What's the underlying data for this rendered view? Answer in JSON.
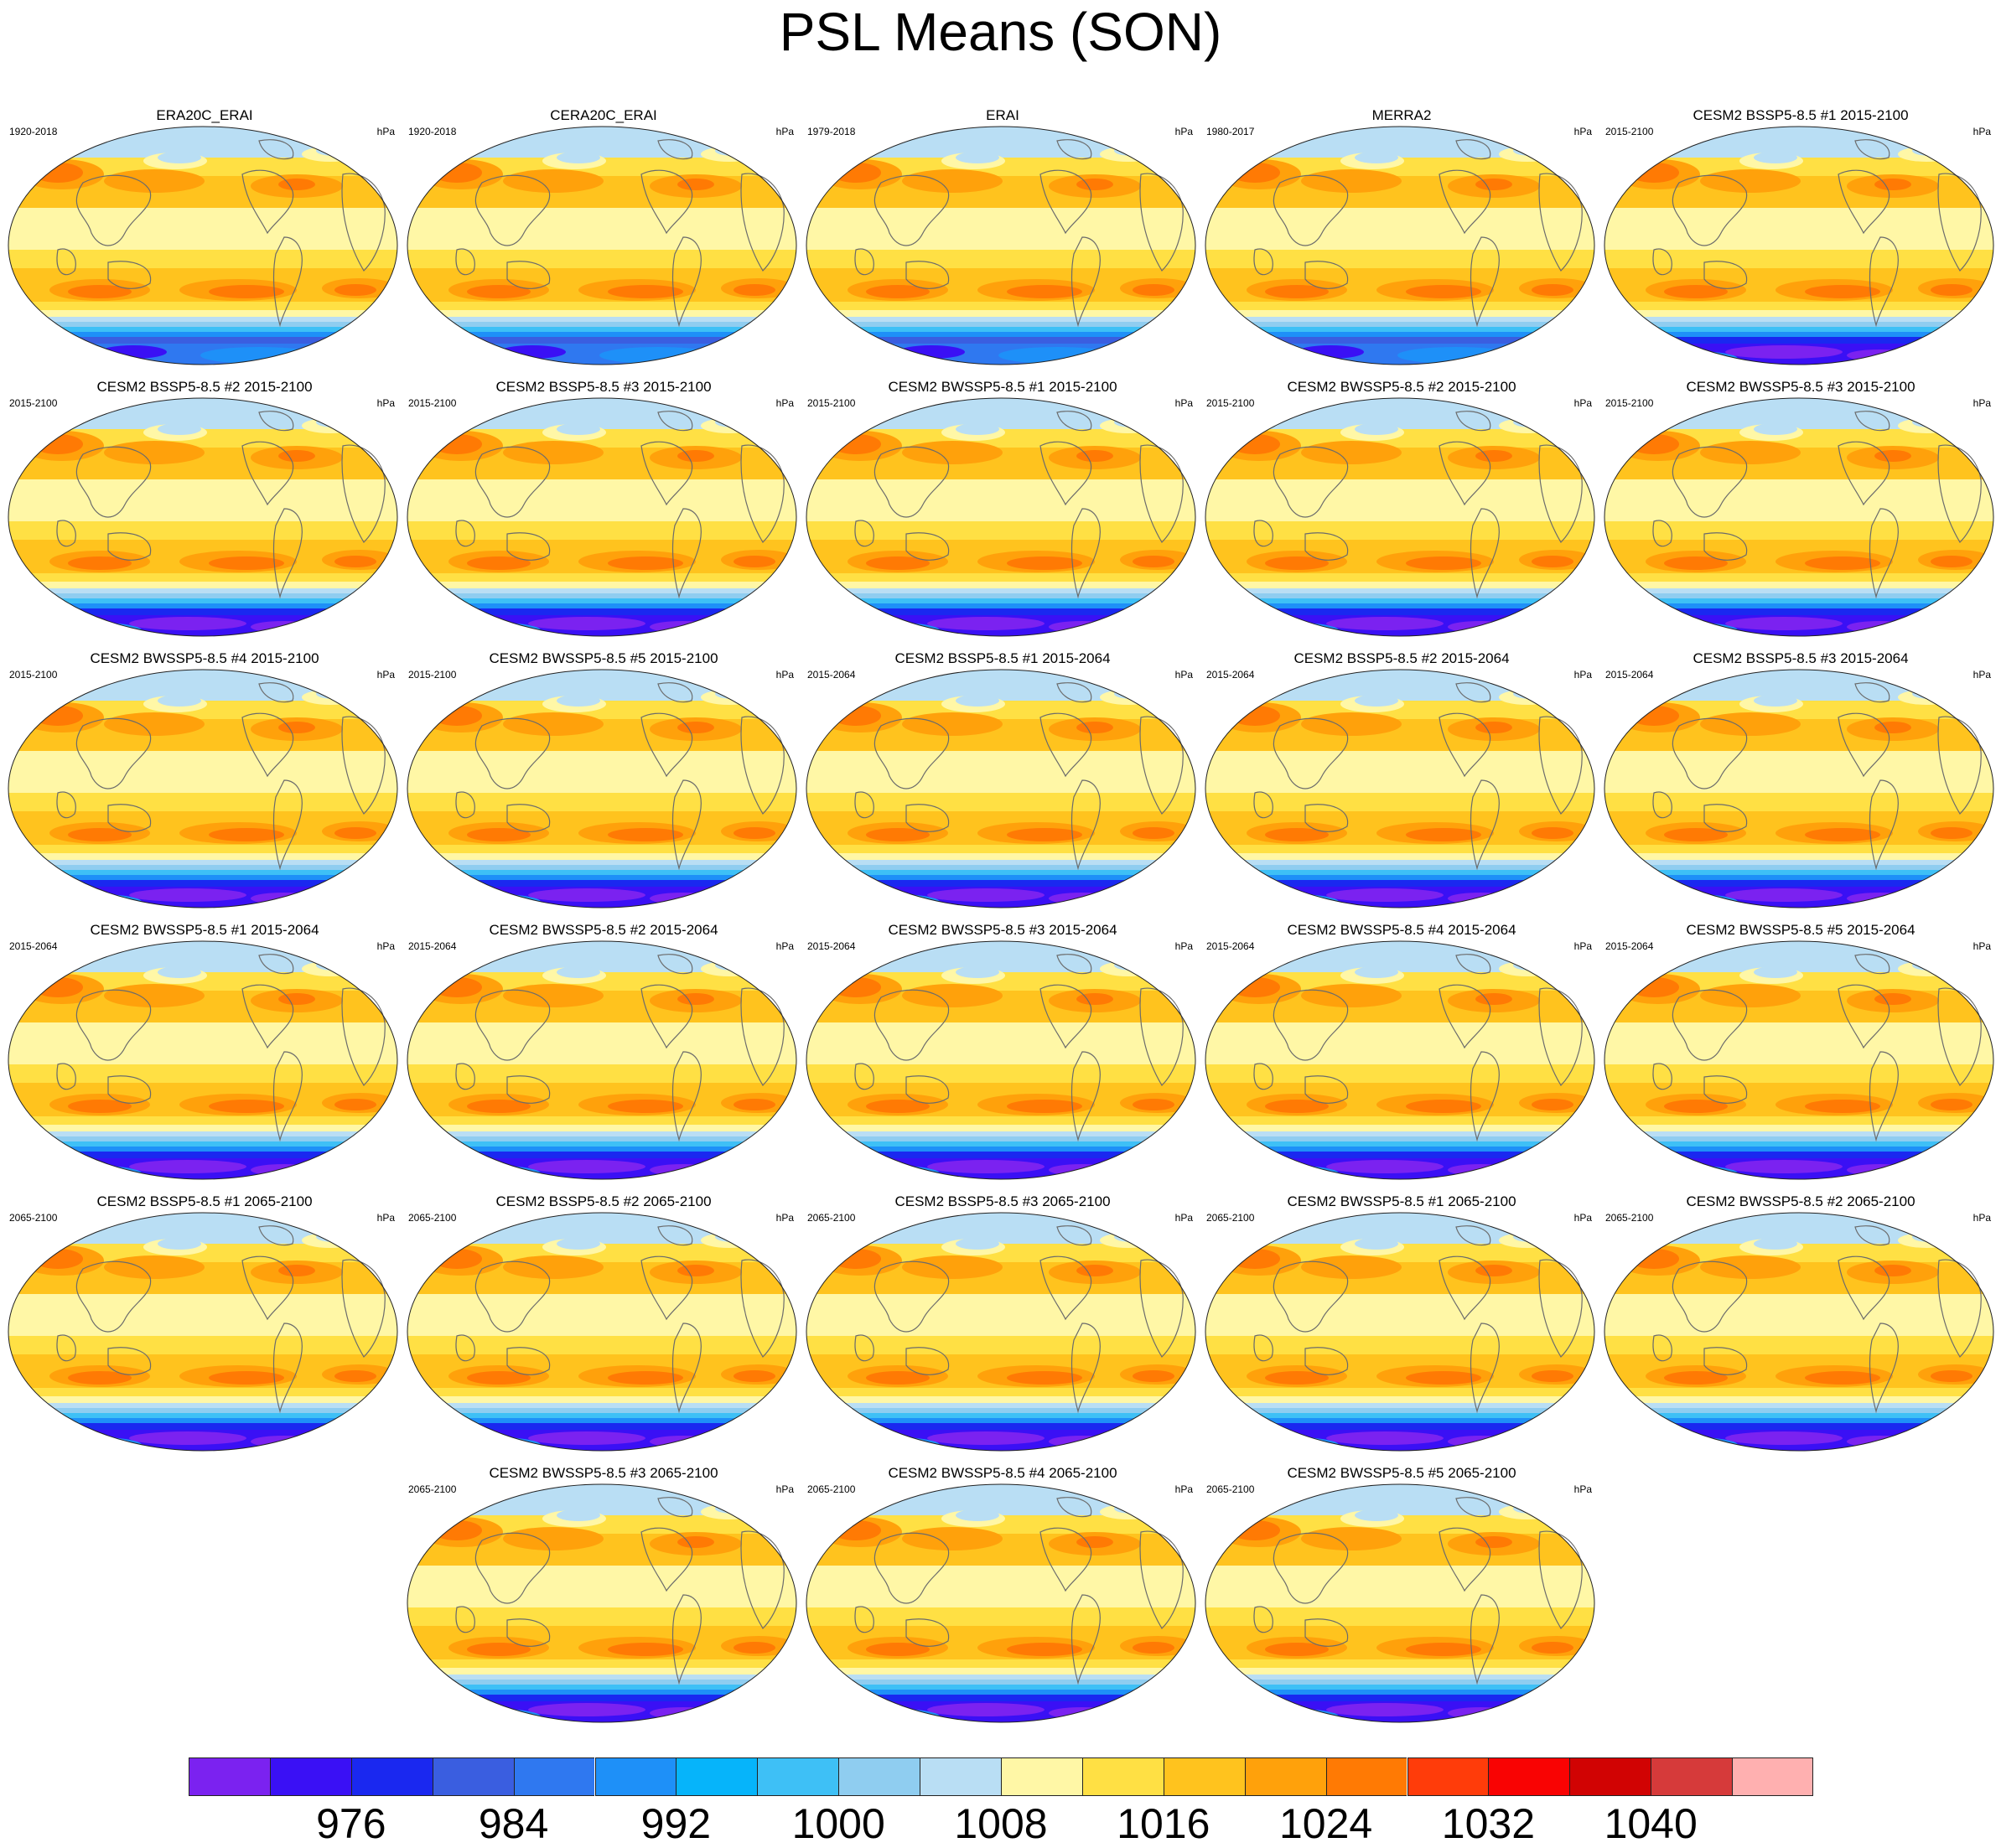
{
  "title": "PSL Means (SON)",
  "panels": [
    {
      "title": "ERA20C_ERAI",
      "period": "1920-2018",
      "units": "hPa",
      "variant": "obs"
    },
    {
      "title": "CERA20C_ERAI",
      "period": "1920-2018",
      "units": "hPa",
      "variant": "obs"
    },
    {
      "title": "ERAI",
      "period": "1979-2018",
      "units": "hPa",
      "variant": "obs"
    },
    {
      "title": "MERRA2",
      "period": "1980-2017",
      "units": "hPa",
      "variant": "obs"
    },
    {
      "title": "CESM2 BSSP5-8.5 #1 2015-2100",
      "period": "2015-2100",
      "units": "hPa",
      "variant": "model"
    },
    {
      "title": "CESM2 BSSP5-8.5 #2 2015-2100",
      "period": "2015-2100",
      "units": "hPa",
      "variant": "model"
    },
    {
      "title": "CESM2 BSSP5-8.5 #3 2015-2100",
      "period": "2015-2100",
      "units": "hPa",
      "variant": "model"
    },
    {
      "title": "CESM2 BWSSP5-8.5 #1 2015-2100",
      "period": "2015-2100",
      "units": "hPa",
      "variant": "model"
    },
    {
      "title": "CESM2 BWSSP5-8.5 #2 2015-2100",
      "period": "2015-2100",
      "units": "hPa",
      "variant": "model"
    },
    {
      "title": "CESM2 BWSSP5-8.5 #3 2015-2100",
      "period": "2015-2100",
      "units": "hPa",
      "variant": "model"
    },
    {
      "title": "CESM2 BWSSP5-8.5 #4 2015-2100",
      "period": "2015-2100",
      "units": "hPa",
      "variant": "model"
    },
    {
      "title": "CESM2 BWSSP5-8.5 #5 2015-2100",
      "period": "2015-2100",
      "units": "hPa",
      "variant": "model"
    },
    {
      "title": "CESM2 BSSP5-8.5 #1 2015-2064",
      "period": "2015-2064",
      "units": "hPa",
      "variant": "model"
    },
    {
      "title": "CESM2 BSSP5-8.5 #2 2015-2064",
      "period": "2015-2064",
      "units": "hPa",
      "variant": "model"
    },
    {
      "title": "CESM2 BSSP5-8.5 #3 2015-2064",
      "period": "2015-2064",
      "units": "hPa",
      "variant": "model"
    },
    {
      "title": "CESM2 BWSSP5-8.5 #1 2015-2064",
      "period": "2015-2064",
      "units": "hPa",
      "variant": "model"
    },
    {
      "title": "CESM2 BWSSP5-8.5 #2 2015-2064",
      "period": "2015-2064",
      "units": "hPa",
      "variant": "model"
    },
    {
      "title": "CESM2 BWSSP5-8.5 #3 2015-2064",
      "period": "2015-2064",
      "units": "hPa",
      "variant": "model"
    },
    {
      "title": "CESM2 BWSSP5-8.5 #4 2015-2064",
      "period": "2015-2064",
      "units": "hPa",
      "variant": "model"
    },
    {
      "title": "CESM2 BWSSP5-8.5 #5 2015-2064",
      "period": "2015-2064",
      "units": "hPa",
      "variant": "model"
    },
    {
      "title": "CESM2 BSSP5-8.5 #1 2065-2100",
      "period": "2065-2100",
      "units": "hPa",
      "variant": "model"
    },
    {
      "title": "CESM2 BSSP5-8.5 #2 2065-2100",
      "period": "2065-2100",
      "units": "hPa",
      "variant": "model"
    },
    {
      "title": "CESM2 BSSP5-8.5 #3 2065-2100",
      "period": "2065-2100",
      "units": "hPa",
      "variant": "model"
    },
    {
      "title": "CESM2 BWSSP5-8.5 #1 2065-2100",
      "period": "2065-2100",
      "units": "hPa",
      "variant": "model"
    },
    {
      "title": "CESM2 BWSSP5-8.5 #2 2065-2100",
      "period": "2065-2100",
      "units": "hPa",
      "variant": "model"
    },
    {
      "title": "CESM2 BWSSP5-8.5 #3 2065-2100",
      "period": "2065-2100",
      "units": "hPa",
      "variant": "model"
    },
    {
      "title": "CESM2 BWSSP5-8.5 #4 2065-2100",
      "period": "2065-2100",
      "units": "hPa",
      "variant": "model"
    },
    {
      "title": "CESM2 BWSSP5-8.5 #5 2065-2100",
      "period": "2065-2100",
      "units": "hPa",
      "variant": "model"
    }
  ],
  "colorbar": {
    "colors": [
      "#7b22f0",
      "#3a10f5",
      "#1a28f0",
      "#3a5ee0",
      "#2f78f0",
      "#1e90f8",
      "#06b4fa",
      "#3ec0f6",
      "#8fcdf0",
      "#b9def4",
      "#fff7a6",
      "#ffe044",
      "#ffc31e",
      "#ffa10b",
      "#ff7a04",
      "#ff3c0a",
      "#f90303",
      "#d10303",
      "#d63a3a",
      "#ffb0b0"
    ],
    "labels": [
      {
        "text": "976",
        "boundary": 2
      },
      {
        "text": "984",
        "boundary": 4
      },
      {
        "text": "992",
        "boundary": 6
      },
      {
        "text": "1000",
        "boundary": 8
      },
      {
        "text": "1008",
        "boundary": 10
      },
      {
        "text": "1016",
        "boundary": 12
      },
      {
        "text": "1024",
        "boundary": 14
      },
      {
        "text": "1032",
        "boundary": 16
      },
      {
        "text": "1040",
        "boundary": 18
      }
    ]
  }
}
